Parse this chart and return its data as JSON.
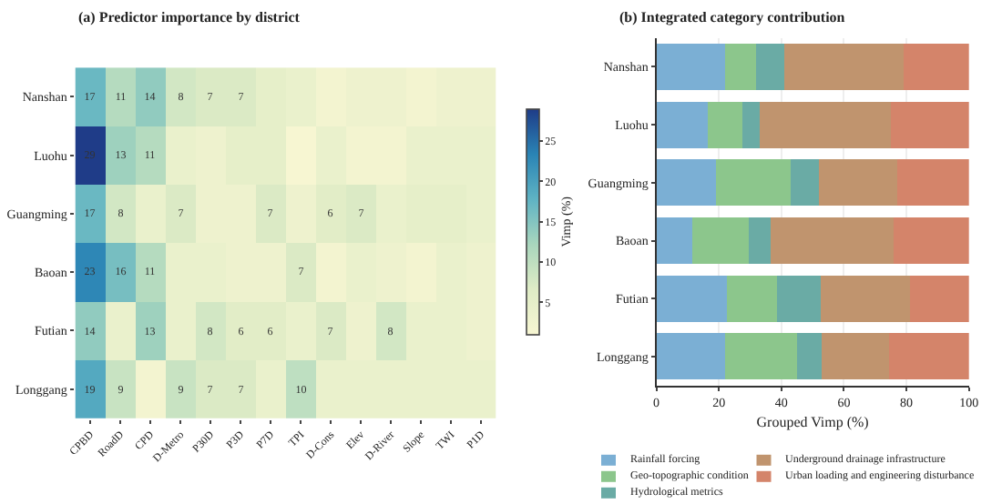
{
  "chart_data": [
    {
      "type": "heatmap",
      "title": "(a) Predictor importance by district",
      "clabel": "Vimp (%)",
      "categories": [
        "CPBD",
        "RoadD",
        "CPD",
        "D-Metro",
        "P30D",
        "P3D",
        "P7D",
        "TPI",
        "D-Cons",
        "Elev",
        "D-River",
        "Slope",
        "TWI",
        "P1D"
      ],
      "y_categories": [
        "Nanshan",
        "Luohu",
        "Guangming",
        "Baoan",
        "Futian",
        "Longgang"
      ],
      "cells": [
        [
          17,
          11,
          14,
          8,
          7,
          7,
          5,
          4,
          2,
          3,
          3,
          2,
          3,
          3
        ],
        [
          29,
          13,
          11,
          4,
          3,
          5,
          5,
          1,
          4,
          2,
          2,
          4,
          4,
          4
        ],
        [
          17,
          8,
          4,
          7,
          3,
          3,
          7,
          3,
          6,
          7,
          4,
          5,
          5,
          4
        ],
        [
          23,
          16,
          11,
          4,
          4,
          3,
          3,
          7,
          2,
          4,
          3,
          2,
          4,
          3
        ],
        [
          14,
          4,
          13,
          4,
          8,
          6,
          6,
          4,
          7,
          3,
          8,
          4,
          4,
          3
        ],
        [
          19,
          9,
          2,
          9,
          7,
          7,
          4,
          10,
          4,
          4,
          4,
          4,
          4,
          4
        ]
      ],
      "cell_labels": [
        [
          "17",
          "11",
          "14",
          "8",
          "7",
          "7",
          null,
          null,
          null,
          null,
          null,
          null,
          null,
          null
        ],
        [
          "29",
          "13",
          "11",
          null,
          null,
          null,
          null,
          null,
          null,
          null,
          null,
          null,
          null,
          null
        ],
        [
          "17",
          "8",
          null,
          "7",
          null,
          null,
          "7",
          null,
          "6",
          "7",
          null,
          null,
          null,
          null
        ],
        [
          "23",
          "16",
          "11",
          null,
          null,
          null,
          null,
          "7",
          null,
          null,
          null,
          null,
          null,
          null
        ],
        [
          "14",
          null,
          "13",
          null,
          "8",
          "6",
          "6",
          null,
          "7",
          null,
          "8",
          null,
          null,
          null
        ],
        [
          "19",
          "9",
          null,
          "9",
          "7",
          "7",
          null,
          "10",
          null,
          null,
          null,
          null,
          null,
          null
        ]
      ],
      "clim": [
        1,
        29
      ],
      "cticks": [
        5,
        10,
        15,
        20,
        25
      ]
    },
    {
      "type": "bar",
      "orientation": "horizontal",
      "stacked": true,
      "title": "(b) Integrated category contribution",
      "xlabel": "Grouped Vimp (%)",
      "categories": [
        "Nanshan",
        "Luohu",
        "Guangming",
        "Baoan",
        "Futian",
        "Longgang"
      ],
      "xlim": [
        0,
        100
      ],
      "xticks": [
        0,
        20,
        40,
        60,
        80,
        100
      ],
      "grid": "x",
      "legend": "bottom",
      "series": [
        {
          "name": "Rainfall forcing",
          "color": "#7bafd4",
          "values": [
            22,
            16.5,
            19,
            11.5,
            22.5,
            22
          ]
        },
        {
          "name": "Geo-topographic condition",
          "color": "#8cc68c",
          "values": [
            10,
            11,
            24,
            18,
            16,
            23
          ]
        },
        {
          "name": "Hydrological metrics",
          "color": "#6aaba5",
          "values": [
            9,
            5.5,
            9,
            7,
            14,
            8
          ]
        },
        {
          "name": "Underground drainage infrastructure",
          "color": "#c0946e",
          "values": [
            38,
            42,
            25,
            39.5,
            28.5,
            21.5
          ]
        },
        {
          "name": "Urban loading and engineering disturbance",
          "color": "#d4846a",
          "values": [
            21,
            25,
            23,
            24,
            19,
            25.5
          ]
        }
      ]
    }
  ]
}
